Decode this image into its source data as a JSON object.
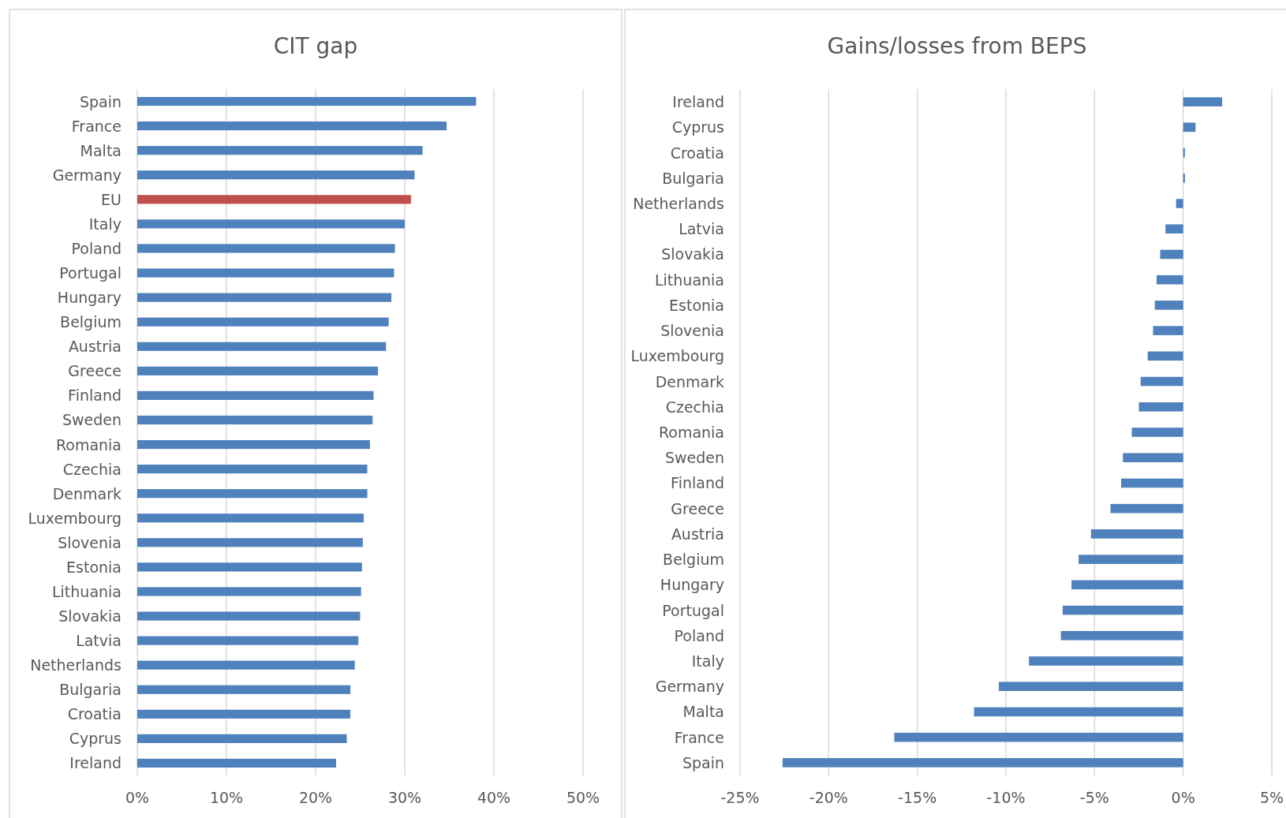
{
  "chart_data": [
    {
      "type": "bar",
      "orientation": "horizontal",
      "title": "CIT gap",
      "categories": [
        "Spain",
        "France",
        "Malta",
        "Germany",
        "EU",
        "Italy",
        "Poland",
        "Portugal",
        "Hungary",
        "Belgium",
        "Austria",
        "Greece",
        "Finland",
        "Sweden",
        "Romania",
        "Czechia",
        "Denmark",
        "Luxembourg",
        "Slovenia",
        "Estonia",
        "Lithuania",
        "Slovakia",
        "Latvia",
        "Netherlands",
        "Bulgaria",
        "Croatia",
        "Cyprus",
        "Ireland"
      ],
      "values": [
        38.0,
        34.7,
        32.0,
        31.1,
        30.7,
        30.0,
        28.9,
        28.8,
        28.5,
        28.2,
        27.9,
        27.0,
        26.5,
        26.4,
        26.1,
        25.8,
        25.8,
        25.4,
        25.3,
        25.2,
        25.1,
        25.0,
        24.8,
        24.4,
        23.9,
        23.9,
        23.5,
        22.3
      ],
      "colors": [
        "#4f81bd",
        "#4f81bd",
        "#4f81bd",
        "#4f81bd",
        "#c0504d",
        "#4f81bd",
        "#4f81bd",
        "#4f81bd",
        "#4f81bd",
        "#4f81bd",
        "#4f81bd",
        "#4f81bd",
        "#4f81bd",
        "#4f81bd",
        "#4f81bd",
        "#4f81bd",
        "#4f81bd",
        "#4f81bd",
        "#4f81bd",
        "#4f81bd",
        "#4f81bd",
        "#4f81bd",
        "#4f81bd",
        "#4f81bd",
        "#4f81bd",
        "#4f81bd",
        "#4f81bd",
        "#4f81bd"
      ],
      "xlim": [
        0,
        50
      ],
      "xticks": [
        {
          "value": 0,
          "label": "0%"
        },
        {
          "value": 10,
          "label": "10%"
        },
        {
          "value": 20,
          "label": "20%"
        },
        {
          "value": 30,
          "label": "30%"
        },
        {
          "value": 40,
          "label": "40%"
        },
        {
          "value": 50,
          "label": "50%"
        }
      ],
      "grid": "x"
    },
    {
      "type": "bar",
      "orientation": "horizontal",
      "title": "Gains/losses from BEPS",
      "categories": [
        "Ireland",
        "Cyprus",
        "Croatia",
        "Bulgaria",
        "Netherlands",
        "Latvia",
        "Slovakia",
        "Lithuania",
        "Estonia",
        "Slovenia",
        "Luxembourg",
        "Denmark",
        "Czechia",
        "Romania",
        "Sweden",
        "Finland",
        "Greece",
        "Austria",
        "Belgium",
        "Hungary",
        "Portugal",
        "Poland",
        "Italy",
        "Germany",
        "Malta",
        "France",
        "Spain"
      ],
      "values": [
        2.2,
        0.7,
        0.1,
        0.1,
        -0.4,
        -1.0,
        -1.3,
        -1.5,
        -1.6,
        -1.7,
        -2.0,
        -2.4,
        -2.5,
        -2.9,
        -3.4,
        -3.5,
        -4.1,
        -5.2,
        -5.9,
        -6.3,
        -6.8,
        -6.9,
        -8.7,
        -10.4,
        -11.8,
        -16.3,
        -22.6
      ],
      "color": "#4f81bd",
      "xlim": [
        -25,
        5
      ],
      "xticks": [
        {
          "value": -25,
          "label": "-25%"
        },
        {
          "value": -20,
          "label": "-20%"
        },
        {
          "value": -15,
          "label": "-15%"
        },
        {
          "value": -10,
          "label": "-10%"
        },
        {
          "value": -5,
          "label": "-5%"
        },
        {
          "value": 0,
          "label": "0%"
        },
        {
          "value": 5,
          "label": "5%"
        }
      ],
      "grid": "x"
    }
  ]
}
